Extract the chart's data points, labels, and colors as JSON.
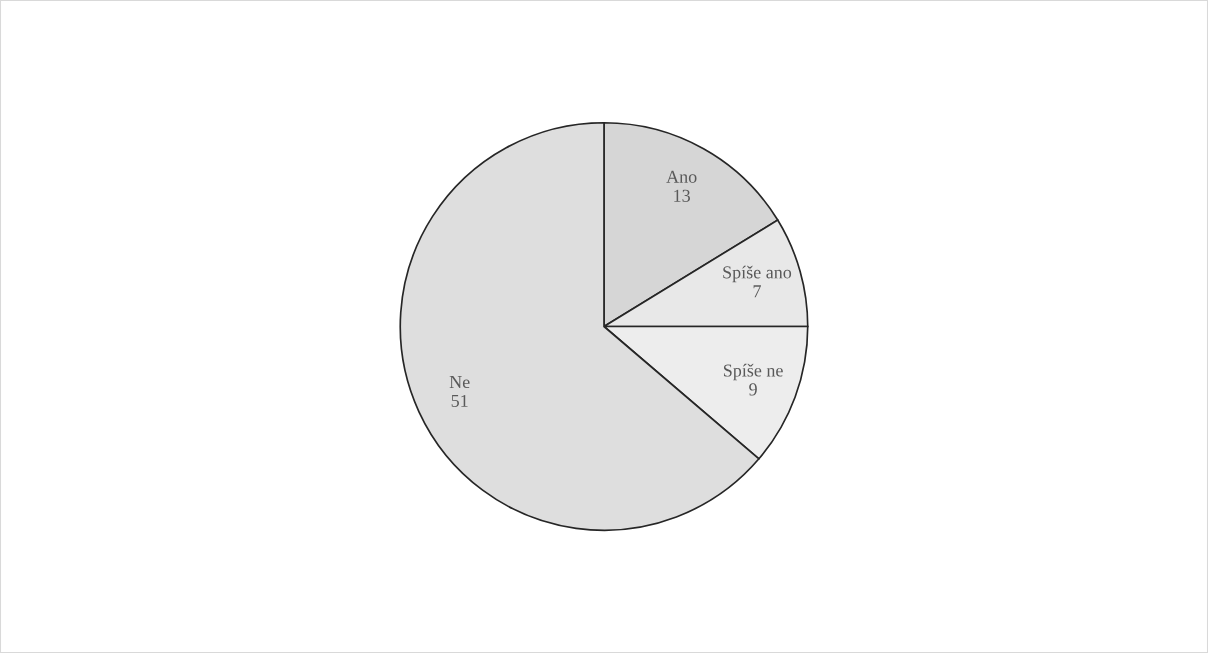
{
  "chart_data": {
    "type": "pie",
    "categories": [
      "Ano",
      "Spíše ano",
      "Spíše ne",
      "Ne"
    ],
    "values": [
      13,
      7,
      9,
      51
    ],
    "colors": [
      "#d6d6d6",
      "#e8e8e8",
      "#ededed",
      "#dedede"
    ],
    "data_labels": true,
    "legend": false
  }
}
